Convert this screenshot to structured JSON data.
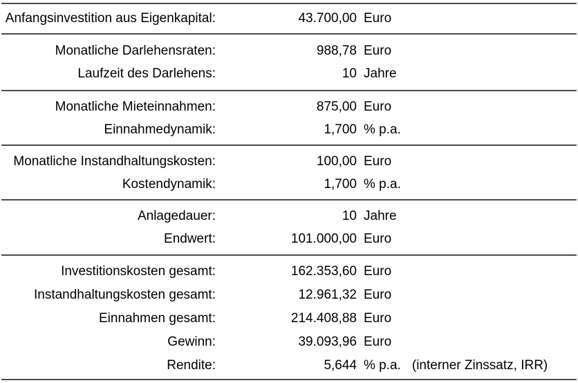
{
  "colors": {
    "background": "#ffffff",
    "text": "#000000",
    "rule": "#4b4b4b"
  },
  "table": {
    "sections": [
      {
        "rows": [
          {
            "label": "Anfangsinvestition aus Eigenkapital:",
            "value": "43.700,00",
            "unit": "Euro"
          }
        ]
      },
      {
        "rows": [
          {
            "label": "Monatliche Darlehensraten:",
            "value": "988,78",
            "unit": "Euro"
          },
          {
            "label": "Laufzeit des Darlehens:",
            "value": "10",
            "unit": "Jahre"
          }
        ]
      },
      {
        "rows": [
          {
            "label": "Monatliche Mieteinnahmen:",
            "value": "875,00",
            "unit": "Euro"
          },
          {
            "label": "Einnahmedynamik:",
            "value": "1,700",
            "unit": "% p.a."
          }
        ]
      },
      {
        "rows": [
          {
            "label": "Monatliche Instandhaltungskosten:",
            "value": "100,00",
            "unit": "Euro"
          },
          {
            "label": "Kostendynamik:",
            "value": "1,700",
            "unit": "% p.a."
          }
        ]
      },
      {
        "rows": [
          {
            "label": "Anlagedauer:",
            "value": "10",
            "unit": "Jahre"
          },
          {
            "label": "Endwert:",
            "value": "101.000,00",
            "unit": "Euro"
          }
        ]
      },
      {
        "rows": [
          {
            "label": "Investitionskosten gesamt:",
            "value": "162.353,60",
            "unit": "Euro"
          },
          {
            "label": "Instandhaltungskosten gesamt:",
            "value": "12.961,32",
            "unit": "Euro"
          },
          {
            "label": "Einnahmen gesamt:",
            "value": "214.408,88",
            "unit": "Euro"
          },
          {
            "label": "Gewinn:",
            "value": "39.093,96",
            "unit": "Euro"
          },
          {
            "label": "Rendite:",
            "value": "5,644",
            "unit": "% p.a.",
            "note": "(interner Zinssatz, IRR)"
          }
        ]
      }
    ]
  }
}
